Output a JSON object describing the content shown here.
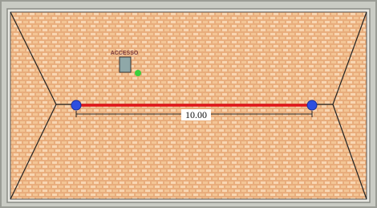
{
  "labels": {
    "access": "ACCESSO",
    "dimension": "10.00"
  }
}
